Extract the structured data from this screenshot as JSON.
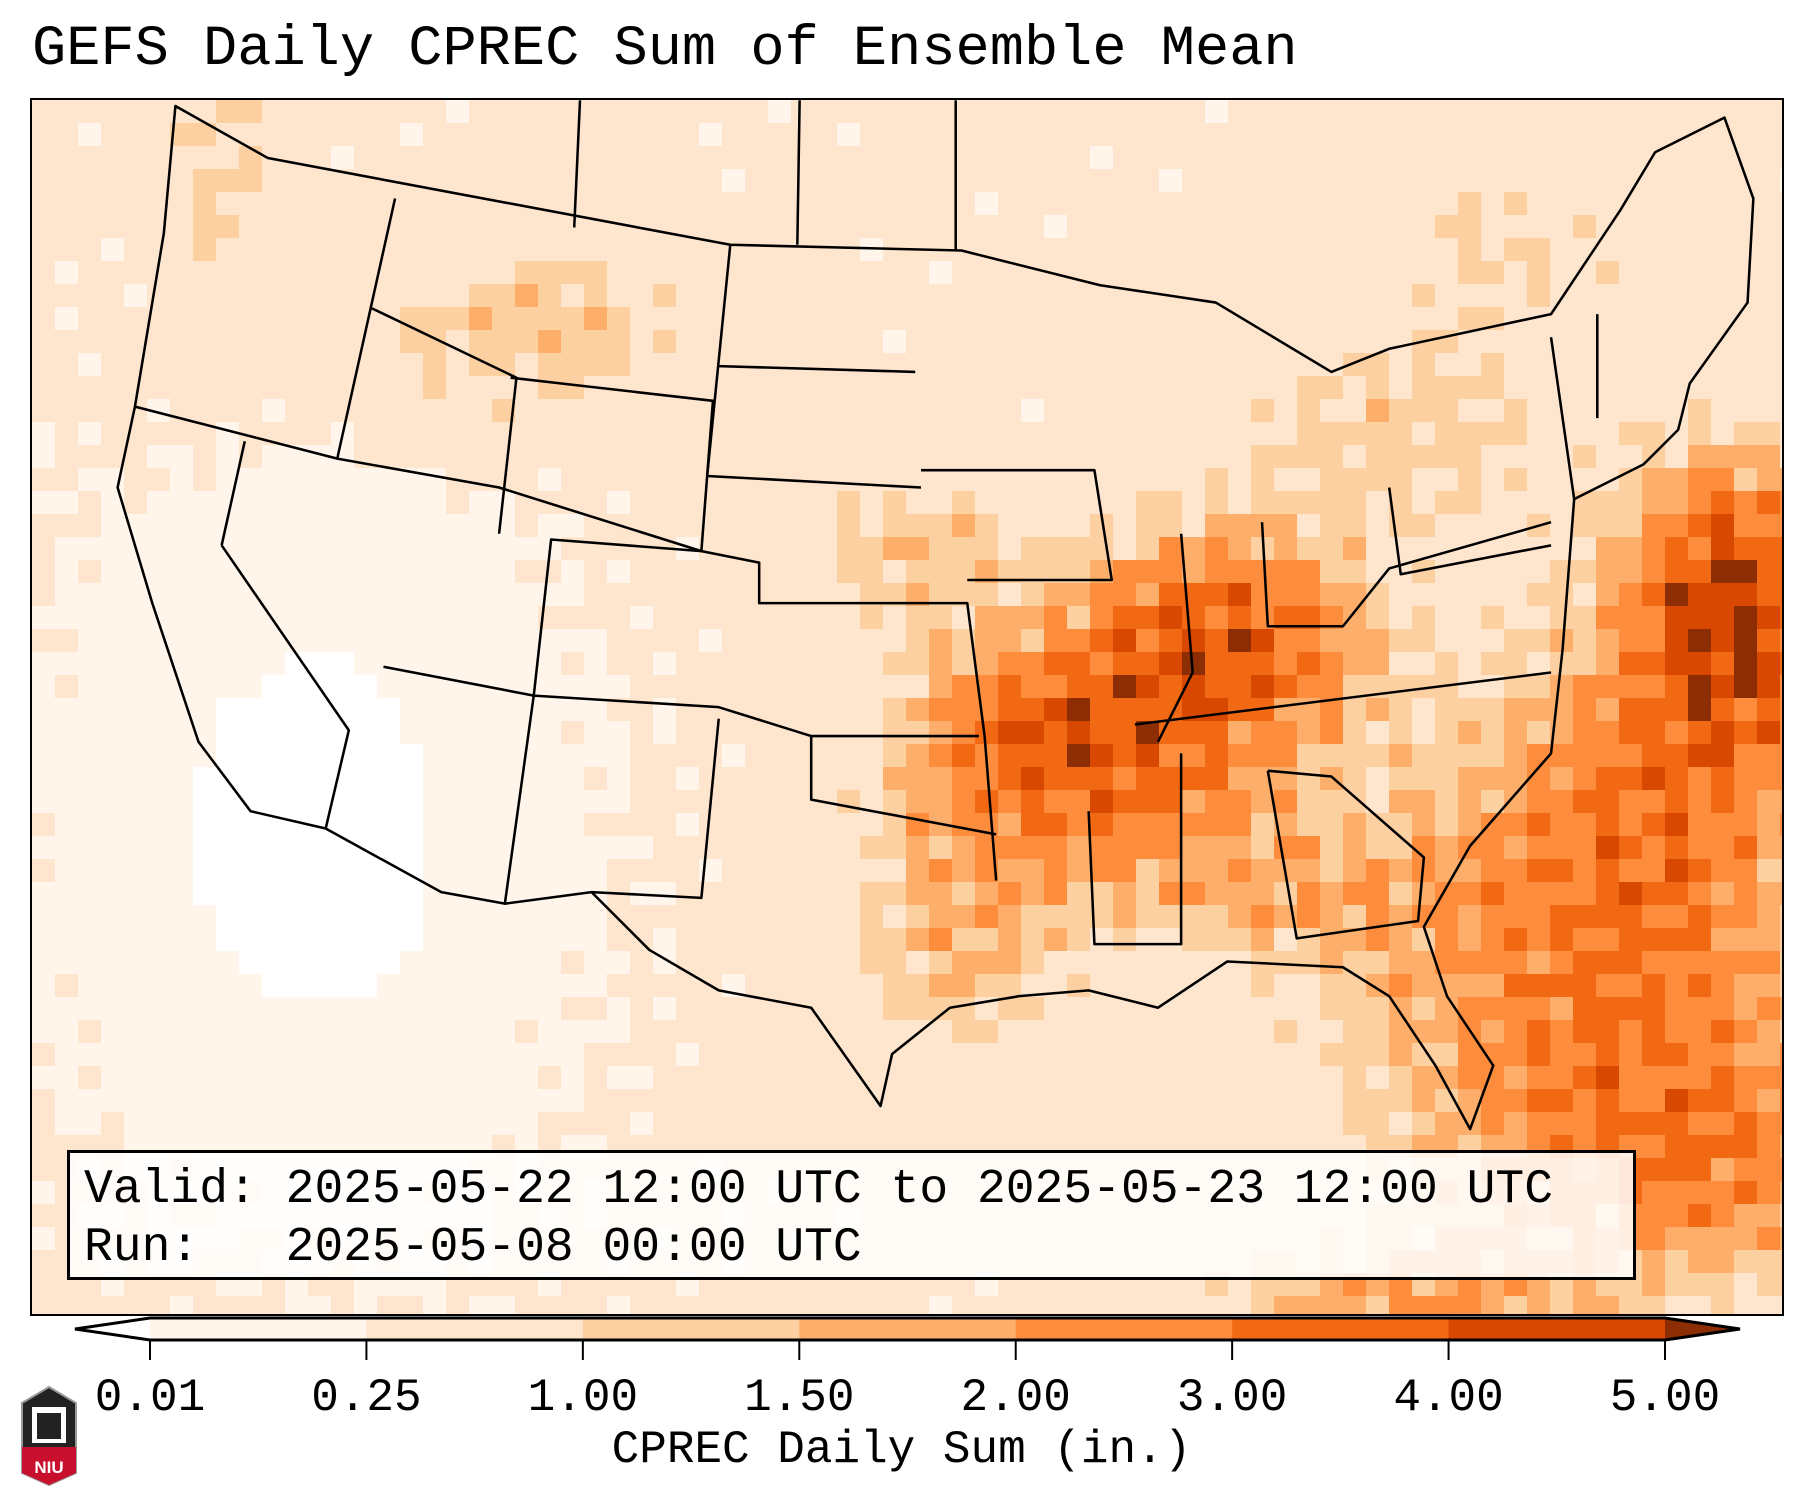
{
  "chart_data": {
    "type": "heatmap",
    "title": "GEFS Daily CPREC Sum of Ensemble Mean",
    "map_region": "Contiguous United States",
    "colorbar": {
      "label": "CPREC Daily Sum (in.)",
      "levels": [
        0.01,
        0.25,
        1.0,
        1.5,
        2.0,
        3.0,
        4.0,
        5.0
      ],
      "tick_labels": [
        "0.01",
        "0.25",
        "1.00",
        "1.50",
        "2.00",
        "3.00",
        "4.00",
        "5.00"
      ],
      "colors": [
        "#fff5eb",
        "#fee6ce",
        "#fdd0a2",
        "#fdae6b",
        "#fd8d3c",
        "#f16913",
        "#d94801"
      ],
      "under_color": "#ffffff",
      "over_color": "#8c2d04",
      "extend": "both"
    },
    "regions_summary": [
      {
        "region": "Oklahoma / Arkansas / Missouri",
        "approx_value_in": 3.0
      },
      {
        "region": "Ohio Valley / Kentucky / Indiana",
        "approx_value_in": 2.5
      },
      {
        "region": "Atlantic off Mid-Atlantic coast",
        "approx_value_in": 5.0
      },
      {
        "region": "Southeast coast / Atlantic",
        "approx_value_in": 2.5
      },
      {
        "region": "Northern Rockies / Montana",
        "approx_value_in": 1.5
      },
      {
        "region": "Southwest / California",
        "approx_value_in": 0.0
      }
    ]
  },
  "info": {
    "valid_line": "Valid: 2025-05-22 12:00 UTC to 2025-05-23 12:00 UTC",
    "run_line": "Run:   2025-05-08 00:00 UTC"
  },
  "logo": {
    "text": "NIU"
  }
}
